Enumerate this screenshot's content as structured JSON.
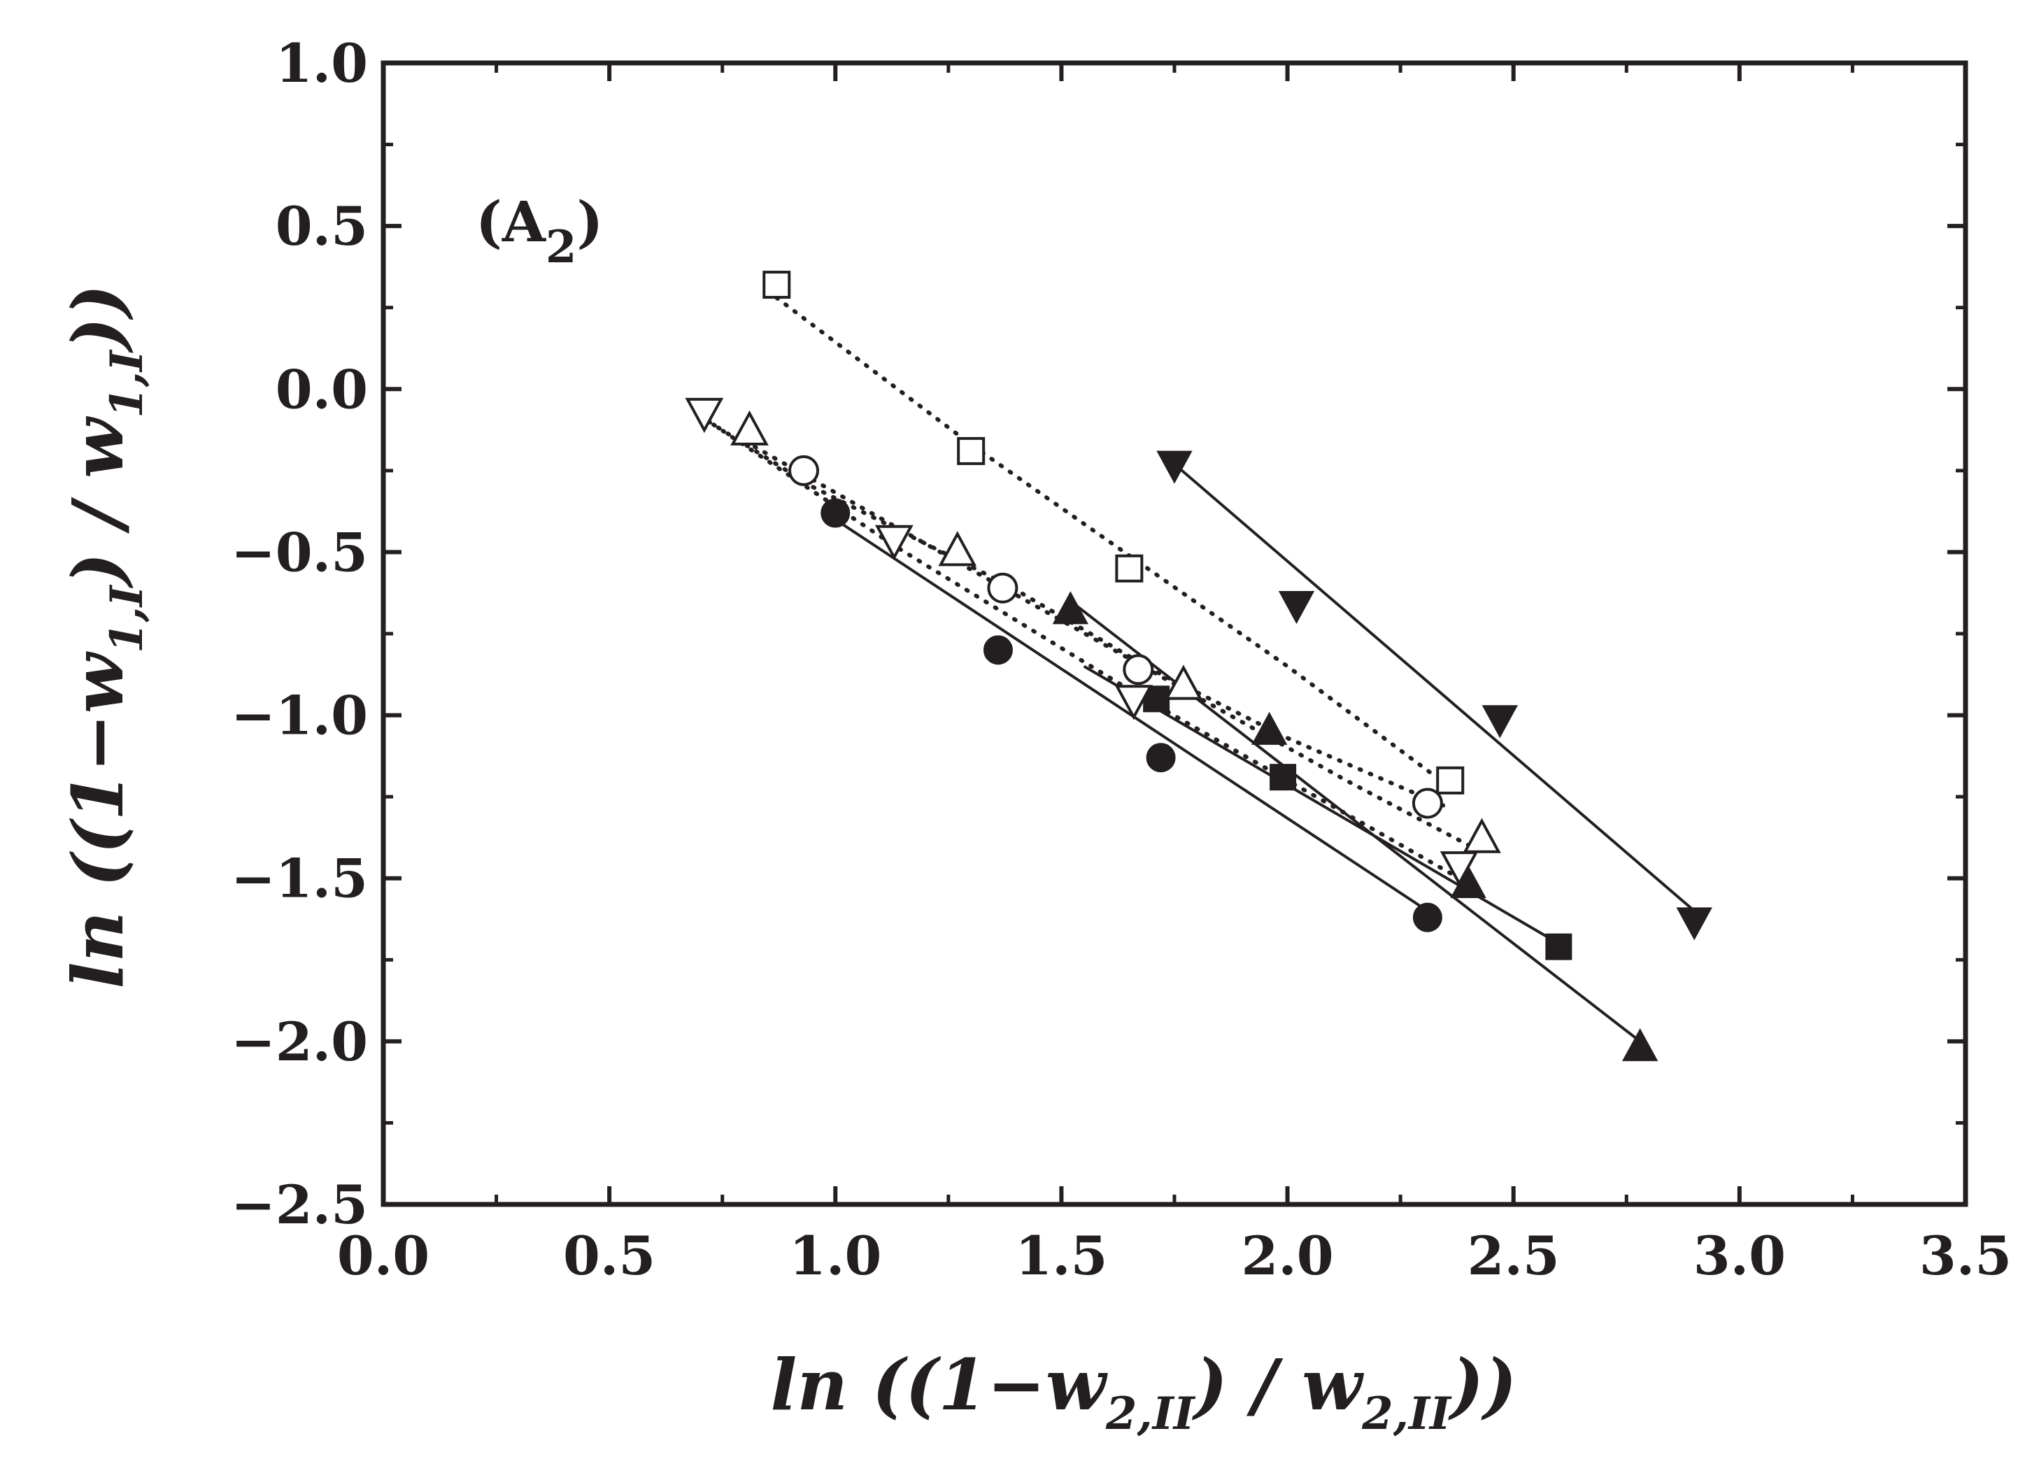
{
  "chart_data": {
    "type": "scatter",
    "title": "",
    "panel_label": {
      "main": "(A",
      "sub": "2",
      "close": ")"
    },
    "xlabel": {
      "pre": "ln ((1−w",
      "sub1": "2,II",
      "mid": ") / w",
      "sub2": "2,II",
      "post": "))"
    },
    "ylabel": {
      "pre": "ln ((1−w",
      "sub1": "1,I",
      "mid": ") / w",
      "sub2": "1,I",
      "post": "))"
    },
    "xlim": [
      0.0,
      3.5
    ],
    "ylim": [
      -2.5,
      1.0
    ],
    "x_ticks": [
      "0.0",
      "0.5",
      "1.0",
      "1.5",
      "2.0",
      "2.5",
      "3.0",
      "3.5"
    ],
    "y_ticks": [
      "1.0",
      "0.5",
      "0.0",
      "−0.5",
      "−1.0",
      "−1.5",
      "−2.0",
      "−2.5"
    ],
    "grid": false,
    "series": [
      {
        "marker": "circle-filled",
        "line": "solid",
        "points": [
          [
            1.0,
            -0.38
          ],
          [
            1.36,
            -0.8
          ],
          [
            1.72,
            -1.13
          ],
          [
            2.31,
            -1.62
          ]
        ],
        "fit": [
          [
            1.0,
            -0.4
          ],
          [
            2.31,
            -1.6
          ]
        ]
      },
      {
        "marker": "square-filled",
        "line": "solid",
        "points": [
          [
            1.71,
            -0.95
          ],
          [
            1.99,
            -1.19
          ],
          [
            2.6,
            -1.71
          ]
        ],
        "fit": [
          [
            1.55,
            -0.85
          ],
          [
            2.6,
            -1.7
          ]
        ]
      },
      {
        "marker": "triangle-up-filled",
        "line": "solid",
        "points": [
          [
            1.52,
            -0.68
          ],
          [
            1.96,
            -1.05
          ],
          [
            2.4,
            -1.52
          ],
          [
            2.78,
            -2.02
          ]
        ],
        "fit": [
          [
            1.52,
            -0.65
          ],
          [
            2.78,
            -2.0
          ]
        ]
      },
      {
        "marker": "triangle-down-filled",
        "line": "solid",
        "points": [
          [
            1.75,
            -0.23
          ],
          [
            2.02,
            -0.66
          ],
          [
            2.47,
            -1.01
          ],
          [
            2.9,
            -1.63
          ]
        ],
        "fit": [
          [
            1.75,
            -0.23
          ],
          [
            2.9,
            -1.6
          ]
        ]
      },
      {
        "marker": "square-open",
        "line": "dotted",
        "points": [
          [
            0.87,
            0.32
          ],
          [
            1.3,
            -0.19
          ],
          [
            1.65,
            -0.55
          ],
          [
            2.36,
            -1.2
          ]
        ],
        "fit": [
          [
            0.87,
            0.28
          ],
          [
            1.3,
            -0.17
          ],
          [
            1.67,
            -0.53
          ],
          [
            2.0,
            -0.85
          ],
          [
            2.32,
            -1.18
          ]
        ]
      },
      {
        "marker": "circle-open",
        "line": "dotted",
        "points": [
          [
            0.93,
            -0.25
          ],
          [
            1.37,
            -0.61
          ],
          [
            1.67,
            -0.86
          ],
          [
            2.31,
            -1.27
          ]
        ],
        "fit": [
          [
            0.72,
            -0.1
          ],
          [
            0.95,
            -0.3
          ],
          [
            1.38,
            -0.6
          ],
          [
            1.7,
            -0.86
          ],
          [
            2.0,
            -1.07
          ],
          [
            2.35,
            -1.28
          ]
        ]
      },
      {
        "marker": "triangle-up-open",
        "line": "dotted",
        "points": [
          [
            0.81,
            -0.13
          ],
          [
            1.27,
            -0.5
          ],
          [
            1.77,
            -0.91
          ],
          [
            2.43,
            -1.38
          ]
        ],
        "fit": [
          [
            0.8,
            -0.16
          ],
          [
            1.27,
            -0.53
          ],
          [
            1.77,
            -0.92
          ],
          [
            2.13,
            -1.2
          ],
          [
            2.43,
            -1.42
          ]
        ]
      },
      {
        "marker": "triangle-down-open",
        "line": "dotted",
        "points": [
          [
            0.71,
            -0.07
          ],
          [
            1.13,
            -0.46
          ],
          [
            1.66,
            -0.95
          ],
          [
            2.38,
            -1.46
          ]
        ],
        "fit": [
          [
            0.71,
            -0.09
          ],
          [
            1.13,
            -0.48
          ],
          [
            1.66,
            -0.93
          ],
          [
            2.0,
            -1.2
          ],
          [
            2.38,
            -1.5
          ]
        ]
      }
    ]
  }
}
